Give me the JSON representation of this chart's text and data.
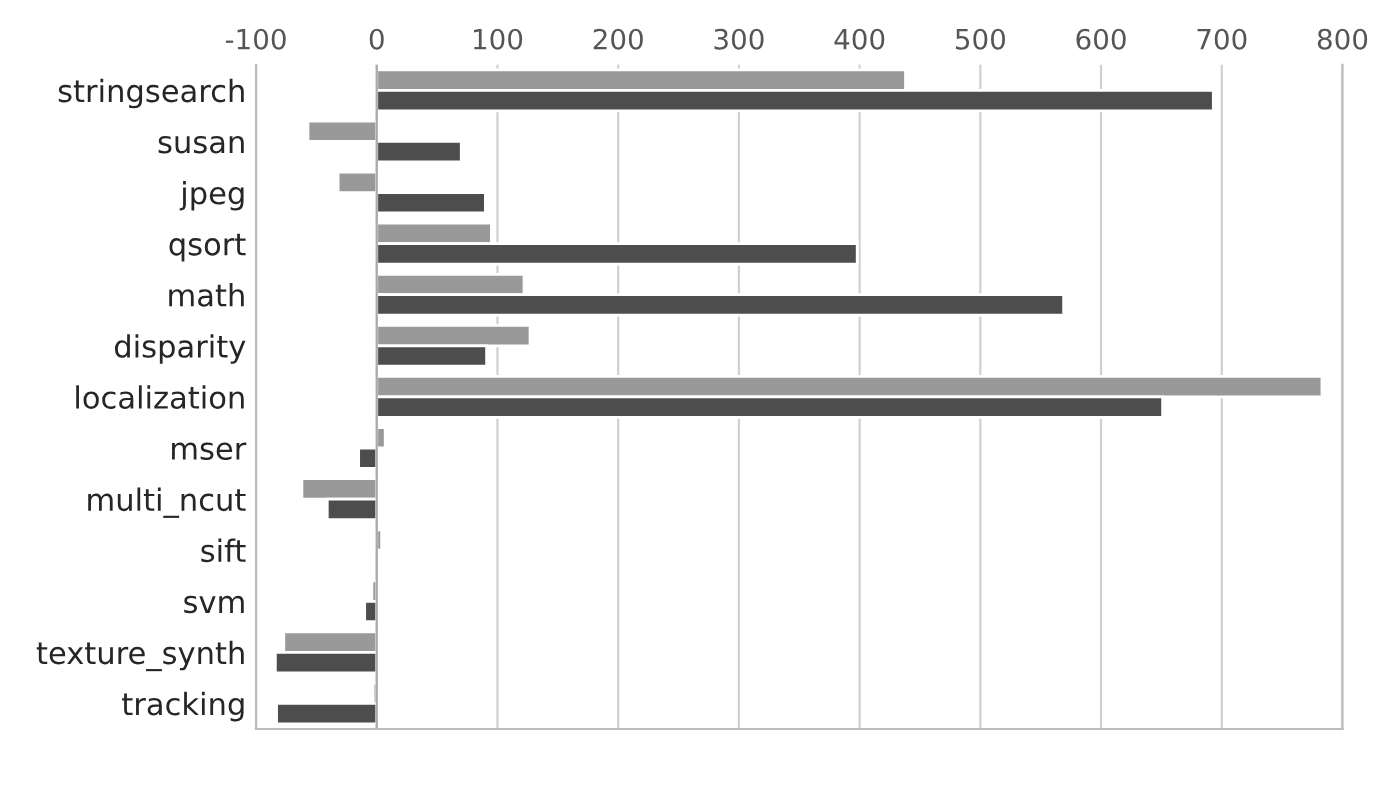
{
  "chart_data": {
    "type": "bar",
    "orientation": "horizontal",
    "categories": [
      "stringsearch",
      "susan",
      "jpeg",
      "qsort",
      "math",
      "disparity",
      "localization",
      "mser",
      "multi_ncut",
      "sift",
      "svm",
      "texture_synth",
      "tracking"
    ],
    "series": [
      {
        "color": "#999999",
        "values": [
          438,
          -57,
          -32,
          95,
          122,
          127,
          783,
          7,
          -62,
          4,
          -4,
          -77,
          -3
        ]
      },
      {
        "color": "#4d4d4d",
        "values": [
          693,
          70,
          90,
          398,
          569,
          91,
          651,
          -15,
          -41,
          null,
          -10,
          -84,
          -83
        ]
      }
    ],
    "xlim": [
      -100,
      800
    ],
    "xticks": [
      -100,
      0,
      100,
      200,
      300,
      400,
      500,
      600,
      700,
      800
    ],
    "grid": "x"
  }
}
